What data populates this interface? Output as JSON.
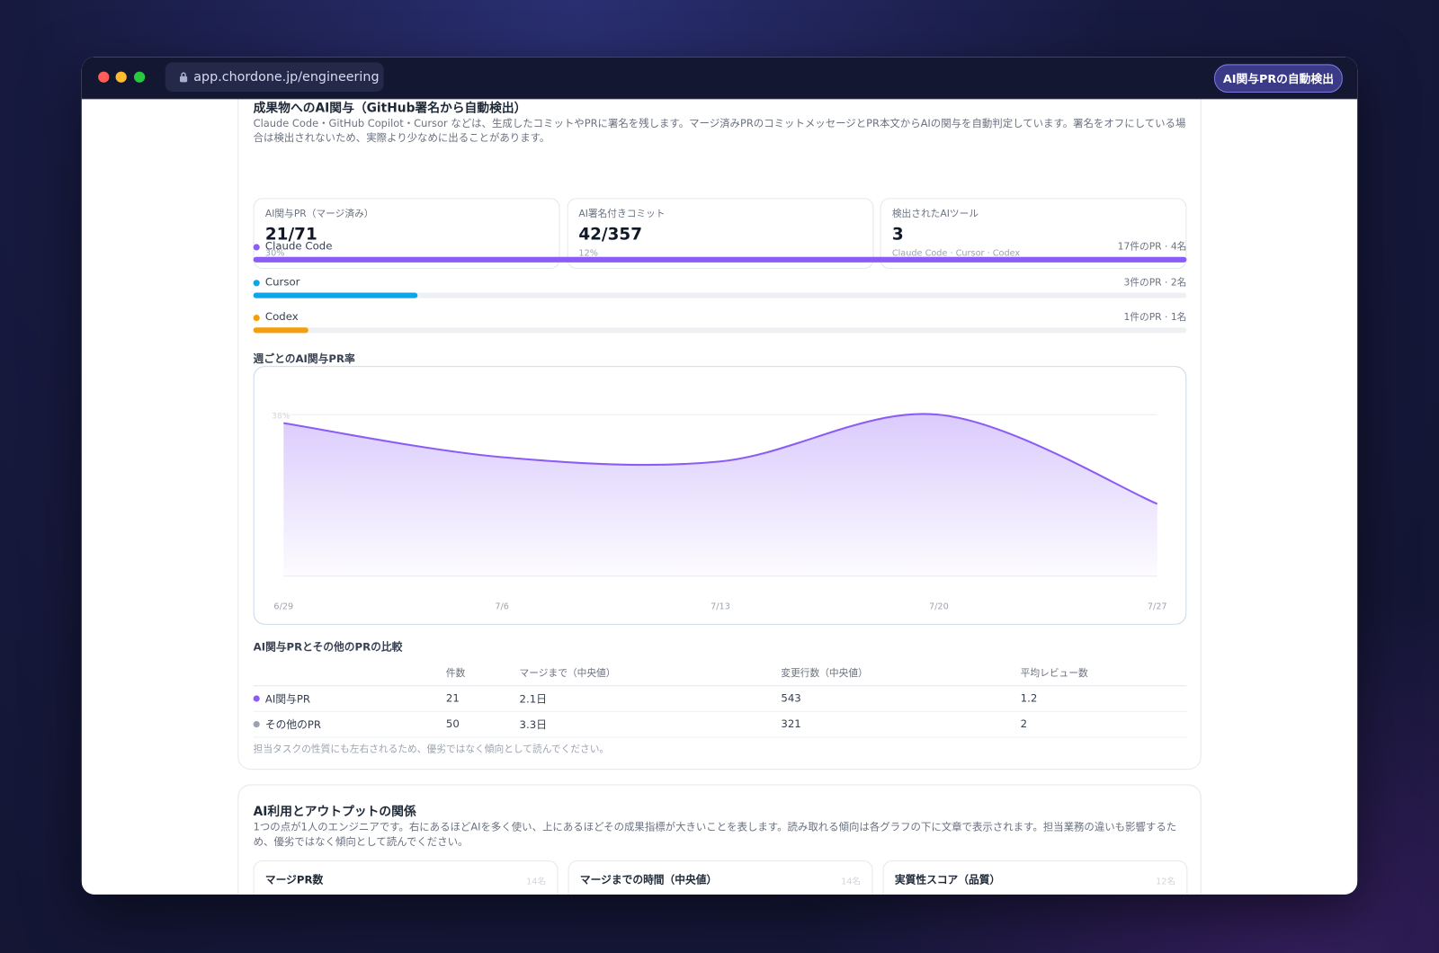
{
  "browser": {
    "url": "app.chordone.jp/engineering",
    "button": "AI関与PRの自動検出"
  },
  "section1": {
    "title": "成果物へのAI関与（GitHub署名から自動検出）",
    "description": "Claude Code・GitHub Copilot・Cursor などは、生成したコミットやPRに署名を残します。マージ済みPRのコミットメッセージとPR本文からAIの関与を自動判定しています。署名をオフにしている場合は検出されないため、実際より少なめに出ることがあります。",
    "stats": [
      {
        "label": "AI関与PR（マージ済み）",
        "value": "21/71",
        "sub": "30%"
      },
      {
        "label": "AI署名付きコミット",
        "value": "42/357",
        "sub": "12%"
      },
      {
        "label": "検出されたAIツール",
        "value": "3",
        "sub": "Claude Code · Cursor · Codex"
      }
    ],
    "tools": [
      {
        "name": "Claude Code",
        "color": "#8b5cf6",
        "prs": 17,
        "prs_label": "17件のPR · 4名"
      },
      {
        "name": "Cursor",
        "color": "#0ea5e9",
        "prs": 3,
        "prs_label": "3件のPR · 2名"
      },
      {
        "name": "Codex",
        "color": "#f59e0b",
        "prs": 1,
        "prs_label": "1件のPR · 1名"
      }
    ]
  },
  "chart_data": {
    "type": "line",
    "title": "週ごとのAI関与PR率",
    "categories": [
      "6/29",
      "7/6",
      "7/13",
      "7/20",
      "7/27"
    ],
    "values": [
      36,
      28,
      27,
      38,
      17
    ],
    "color": "#8b5cf6",
    "ylim": [
      0,
      38
    ],
    "yticks": [
      {
        "value": 38,
        "label": "38%"
      }
    ],
    "grid": true
  },
  "comparison": {
    "title": "AI関与PRとその他のPRの比較",
    "headers": [
      "件数",
      "マージまで（中央値）",
      "変更行数（中央値）",
      "平均レビュー数"
    ],
    "rows": [
      {
        "name": "AI関与PR",
        "color": "#8b5cf6",
        "cells": [
          "21",
          "2.1日",
          "543",
          "1.2"
        ]
      },
      {
        "name": "その他のPR",
        "color": "#9ca3af",
        "cells": [
          "50",
          "3.3日",
          "321",
          "2"
        ]
      }
    ],
    "note": "担当タスクの性質にも左右されるため、優劣ではなく傾向として読んでください。"
  },
  "section2": {
    "title": "AI利用とアウトプットの関係",
    "description": "1つの点が1人のエンジニアです。右にあるほどAIを多く使い、上にあるほどその成果指標が大きいことを表します。読み取れる傾向は各グラフの下に文章で表示されます。担当業務の違いも影響するため、優劣ではなく傾向として読んでください。",
    "cards": [
      {
        "title": "マージPR数",
        "count": "14名"
      },
      {
        "title": "マージまでの時間（中央値）",
        "count": "14名"
      },
      {
        "title": "実質性スコア（品質）",
        "count": "12名"
      }
    ]
  }
}
